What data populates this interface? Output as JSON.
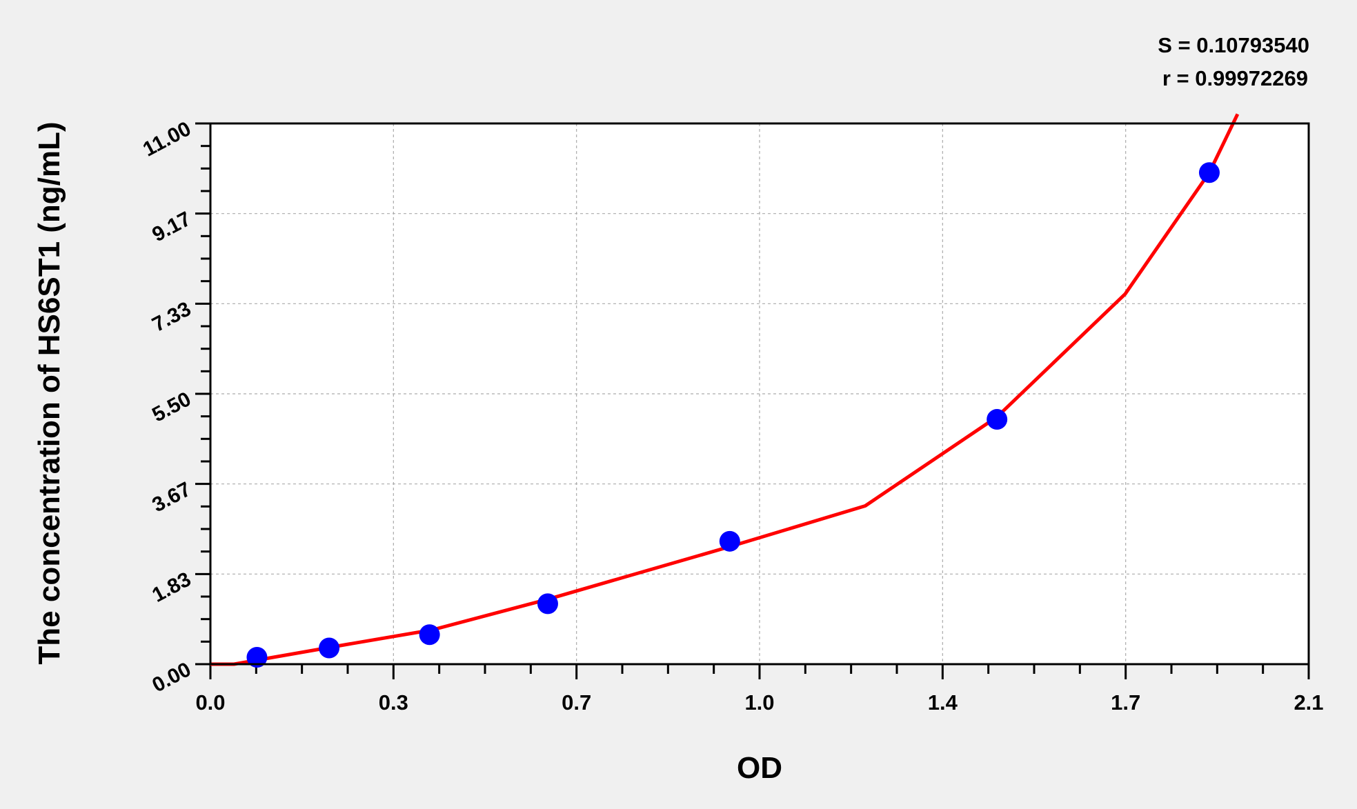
{
  "chart_data": {
    "type": "scatter",
    "title": "",
    "xlabel": "OD",
    "ylabel": "The concentration of HS6ST1 (ng/mL)",
    "xlim": [
      0,
      2.1
    ],
    "ylim": [
      0,
      11
    ],
    "x_ticks": [
      "0.0",
      "0.3",
      "0.7",
      "1.0",
      "1.4",
      "1.7",
      "2.1"
    ],
    "y_ticks": [
      "0.00",
      "1.83",
      "3.67",
      "5.50",
      "7.33",
      "9.17",
      "11.00"
    ],
    "grid": true,
    "annotations": [
      "S = 0.10793540",
      "r = 0.99972269"
    ],
    "series": [
      {
        "type": "scatter",
        "color": "#0000ff",
        "x": [
          0.089,
          0.227,
          0.419,
          0.645,
          0.993,
          1.504,
          1.91
        ],
        "y": [
          0.14,
          0.33,
          0.6,
          1.23,
          2.5,
          4.98,
          10.0
        ]
      },
      {
        "type": "line",
        "color": "#ff0000",
        "x": [
          0.0,
          0.045,
          0.26,
          0.425,
          0.645,
          0.993,
          1.252,
          1.504,
          1.749,
          1.91,
          1.964
        ],
        "y": [
          0.0,
          0.0,
          0.4,
          0.7,
          1.32,
          2.39,
          3.22,
          5.03,
          7.53,
          10.0,
          11.19
        ]
      }
    ]
  }
}
